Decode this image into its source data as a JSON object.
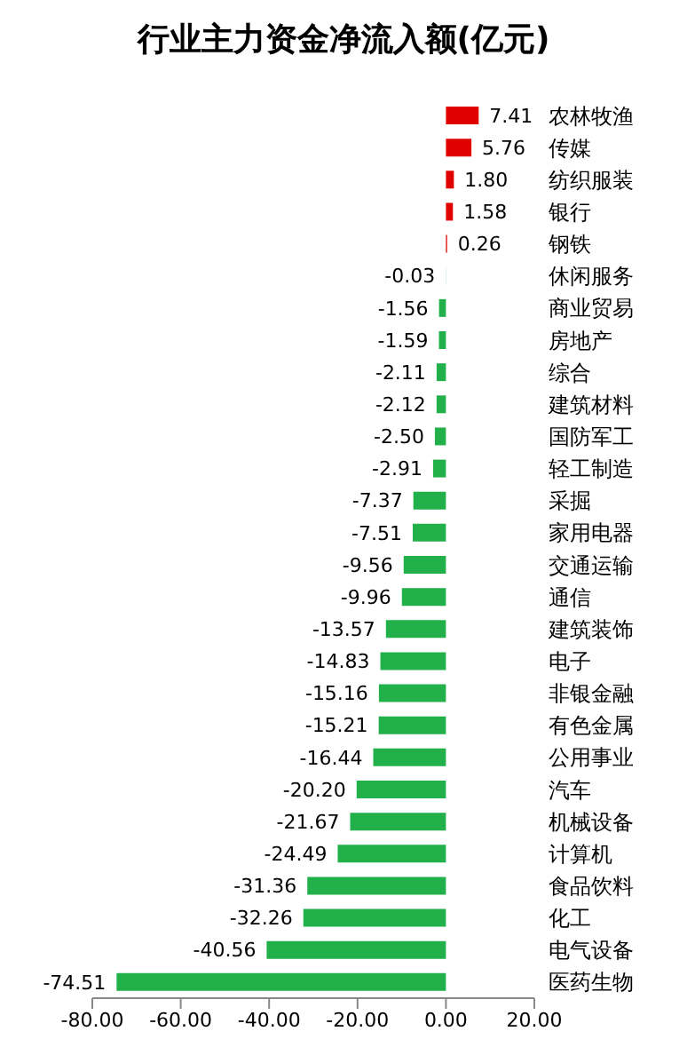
{
  "chart_data": {
    "type": "bar",
    "orientation": "horizontal",
    "title": "行业主力资金净流入额(亿元)",
    "categories": [
      "农林牧渔",
      "传媒",
      "纺织服装",
      "银行",
      "钢铁",
      "休闲服务",
      "商业贸易",
      "房地产",
      "综合",
      "建筑材料",
      "国防军工",
      "轻工制造",
      "采掘",
      "家用电器",
      "交通运输",
      "通信",
      "建筑装饰",
      "电子",
      "非银金融",
      "有色金属",
      "公用事业",
      "汽车",
      "机械设备",
      "计算机",
      "食品饮料",
      "化工",
      "电气设备",
      "医药生物"
    ],
    "values": [
      7.41,
      5.76,
      1.8,
      1.58,
      0.26,
      -0.03,
      -1.56,
      -1.59,
      -2.11,
      -2.12,
      -2.5,
      -2.91,
      -7.37,
      -7.51,
      -9.56,
      -9.96,
      -13.57,
      -14.83,
      -15.16,
      -15.21,
      -16.44,
      -20.2,
      -21.67,
      -24.49,
      -31.36,
      -32.26,
      -40.56,
      -74.51
    ],
    "value_labels": [
      "7.41",
      "5.76",
      "1.80",
      "1.58",
      "0.26",
      "-0.03",
      "-1.56",
      "-1.59",
      "-2.11",
      "-2.12",
      "-2.50",
      "-2.91",
      "-7.37",
      "-7.51",
      "-9.56",
      "-9.96",
      "-13.57",
      "-14.83",
      "-15.16",
      "-15.21",
      "-16.44",
      "-20.20",
      "-21.67",
      "-24.49",
      "-31.36",
      "-32.26",
      "-40.56",
      "-74.51"
    ],
    "colors": [
      "#e00000",
      "#e00000",
      "#e00000",
      "#e00000",
      "#e00000",
      "#22b04b",
      "#22b04b",
      "#22b04b",
      "#22b04b",
      "#22b04b",
      "#22b04b",
      "#22b04b",
      "#22b04b",
      "#22b04b",
      "#22b04b",
      "#22b04b",
      "#22b04b",
      "#22b04b",
      "#22b04b",
      "#22b04b",
      "#22b04b",
      "#22b04b",
      "#22b04b",
      "#22b04b",
      "#22b04b",
      "#22b04b",
      "#22b04b",
      "#22b04b"
    ],
    "xlim": [
      -80,
      20
    ],
    "xticks": [
      {
        "value": -80,
        "label": "-80.00"
      },
      {
        "value": -60,
        "label": "-60.00"
      },
      {
        "value": -40,
        "label": "-40.00"
      },
      {
        "value": -20,
        "label": "-20.00"
      },
      {
        "value": 0,
        "label": "0.00"
      },
      {
        "value": 20,
        "label": "20.00"
      }
    ],
    "grid": false,
    "legend": false
  }
}
